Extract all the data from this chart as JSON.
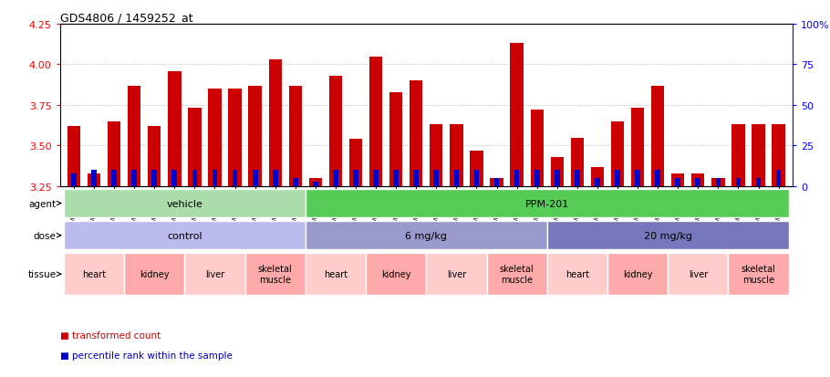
{
  "title": "GDS4806 / 1459252_at",
  "samples": [
    "GSM783280",
    "GSM783281",
    "GSM783282",
    "GSM783289",
    "GSM783290",
    "GSM783291",
    "GSM783298",
    "GSM783299",
    "GSM783300",
    "GSM783307",
    "GSM783308",
    "GSM783309",
    "GSM783283",
    "GSM783284",
    "GSM783285",
    "GSM783292",
    "GSM783293",
    "GSM783294",
    "GSM783301",
    "GSM783302",
    "GSM783303",
    "GSM783310",
    "GSM783311",
    "GSM783312",
    "GSM783286",
    "GSM783287",
    "GSM783288",
    "GSM783295",
    "GSM783296",
    "GSM783297",
    "GSM783304",
    "GSM783305",
    "GSM783306",
    "GSM783313",
    "GSM783314",
    "GSM783315"
  ],
  "red_values": [
    3.62,
    3.33,
    3.65,
    3.87,
    3.62,
    3.96,
    3.73,
    3.85,
    3.85,
    3.87,
    4.03,
    3.87,
    3.3,
    3.93,
    3.54,
    4.05,
    3.83,
    3.9,
    3.63,
    3.63,
    3.47,
    3.3,
    4.13,
    3.72,
    3.43,
    3.55,
    3.37,
    3.65,
    3.73,
    3.87,
    3.33,
    3.33,
    3.3,
    3.63,
    3.63,
    3.63
  ],
  "blue_percentiles": [
    8,
    10,
    10,
    10,
    10,
    10,
    10,
    10,
    10,
    10,
    10,
    5,
    3,
    10,
    10,
    10,
    10,
    10,
    10,
    10,
    10,
    5,
    10,
    10,
    10,
    10,
    5,
    10,
    10,
    10,
    5,
    5,
    5,
    5,
    5,
    10
  ],
  "ymin": 3.25,
  "ymax": 4.25,
  "yticks": [
    3.25,
    3.5,
    3.75,
    4.0,
    4.25
  ],
  "right_yticks": [
    0,
    25,
    50,
    75,
    100
  ],
  "right_tick_labels": [
    "0",
    "25",
    "50",
    "75",
    "100%"
  ],
  "bar_color": "#cc0000",
  "blue_color": "#0000cc",
  "agent_groups": [
    {
      "label": "vehicle",
      "start": 0,
      "end": 11,
      "color": "#aaddaa"
    },
    {
      "label": "PPM-201",
      "start": 12,
      "end": 35,
      "color": "#55cc55"
    }
  ],
  "dose_groups": [
    {
      "label": "control",
      "start": 0,
      "end": 11,
      "color": "#bbbbee"
    },
    {
      "label": "6 mg/kg",
      "start": 12,
      "end": 23,
      "color": "#9999cc"
    },
    {
      "label": "20 mg/kg",
      "start": 24,
      "end": 35,
      "color": "#7777bb"
    }
  ],
  "tissue_groups": [
    {
      "label": "heart",
      "start": 0,
      "end": 2,
      "color": "#ffcccc"
    },
    {
      "label": "kidney",
      "start": 3,
      "end": 5,
      "color": "#ffaaaa"
    },
    {
      "label": "liver",
      "start": 6,
      "end": 8,
      "color": "#ffcccc"
    },
    {
      "label": "skeletal\nmuscle",
      "start": 9,
      "end": 11,
      "color": "#ffaaaa"
    },
    {
      "label": "heart",
      "start": 12,
      "end": 14,
      "color": "#ffcccc"
    },
    {
      "label": "kidney",
      "start": 15,
      "end": 17,
      "color": "#ffaaaa"
    },
    {
      "label": "liver",
      "start": 18,
      "end": 20,
      "color": "#ffcccc"
    },
    {
      "label": "skeletal\nmuscle",
      "start": 21,
      "end": 23,
      "color": "#ffaaaa"
    },
    {
      "label": "heart",
      "start": 24,
      "end": 26,
      "color": "#ffcccc"
    },
    {
      "label": "kidney",
      "start": 27,
      "end": 29,
      "color": "#ffaaaa"
    },
    {
      "label": "liver",
      "start": 30,
      "end": 32,
      "color": "#ffcccc"
    },
    {
      "label": "skeletal\nmuscle",
      "start": 33,
      "end": 35,
      "color": "#ffaaaa"
    }
  ],
  "legend_items": [
    {
      "color": "#cc0000",
      "label": "transformed count"
    },
    {
      "color": "#0000cc",
      "label": "percentile rank within the sample"
    }
  ],
  "n_samples": 36
}
